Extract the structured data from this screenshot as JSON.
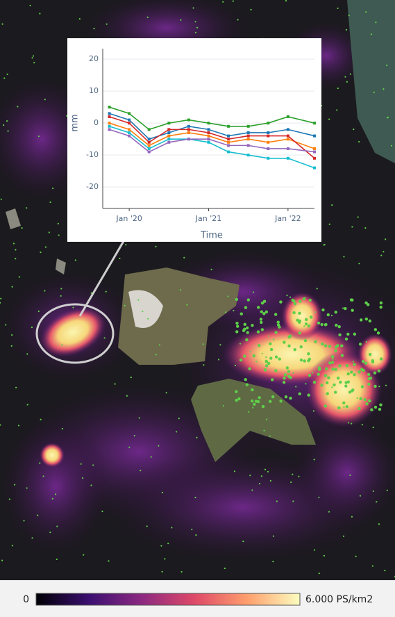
{
  "chart_data": {
    "type": "line",
    "x_label": "Time",
    "y_label": "mm",
    "x": [
      "2019-10",
      "2020-01",
      "2020-04",
      "2020-07",
      "2020-10",
      "2021-01",
      "2021-04",
      "2021-07",
      "2021-10",
      "2022-01",
      "2022-05"
    ],
    "series": [
      {
        "color": "#1f77b4",
        "values": [
          3,
          1,
          -5,
          -3,
          -1,
          -2,
          -4,
          -3,
          -3,
          -2,
          -4
        ]
      },
      {
        "color": "#ff7f0e",
        "values": [
          0,
          -2,
          -7,
          -4,
          -3,
          -4,
          -6,
          -5,
          -6,
          -5,
          -8
        ]
      },
      {
        "color": "#2ca02c",
        "values": [
          5,
          3,
          -2,
          0,
          1,
          0,
          -1,
          -1,
          0,
          2,
          0
        ]
      },
      {
        "color": "#17becf",
        "values": [
          -1,
          -3,
          -8,
          -5,
          -5,
          -6,
          -9,
          -10,
          -11,
          -11,
          -14
        ]
      },
      {
        "color": "#d62728",
        "values": [
          2,
          0,
          -6,
          -2,
          -2,
          -3,
          -5,
          -4,
          -4,
          -4,
          -11
        ]
      },
      {
        "color": "#9467bd",
        "values": [
          -2,
          -4,
          -9,
          -6,
          -5,
          -5,
          -7,
          -7,
          -8,
          -8,
          -9
        ]
      }
    ],
    "xlim": [
      "2019-09",
      "2022-05"
    ],
    "xticks": [
      {
        "value": "2020-01",
        "label": "Jan '20"
      },
      {
        "value": "2021-01",
        "label": "Jan '21"
      },
      {
        "value": "2022-01",
        "label": "Jan '22"
      }
    ],
    "ylim": [
      -26.7,
      23.3
    ],
    "yticks": [
      20,
      10,
      0,
      -10,
      -20
    ],
    "grid": true
  },
  "colorbar": {
    "lim": [
      0,
      6
    ],
    "ticks": [
      0,
      {
        "value": 6,
        "label": "6.000 PS/km2"
      }
    ],
    "colors": [
      "#000004",
      "#3b0f70",
      "#8c2981",
      "#de4968",
      "#fe9f6d",
      "#fcfdbf"
    ]
  }
}
